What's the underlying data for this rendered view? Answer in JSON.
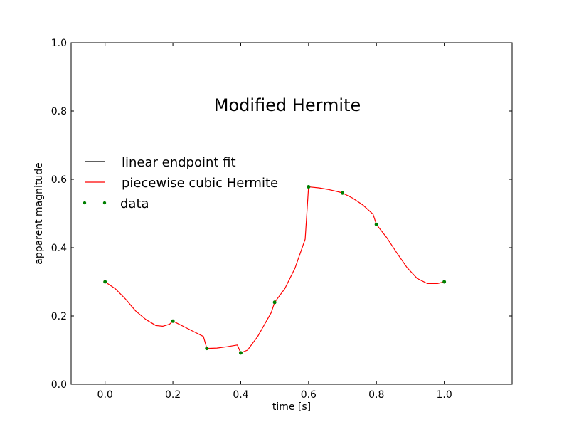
{
  "chart_data": {
    "type": "line",
    "title": "Modified Hermite",
    "xlabel": "time [s]",
    "ylabel": "apparent magnitude",
    "xlim": [
      -0.1,
      1.2
    ],
    "ylim": [
      0.0,
      1.0
    ],
    "xticks": [
      "0.0",
      "0.2",
      "0.4",
      "0.6",
      "0.8",
      "1.0"
    ],
    "xtick_values": [
      0.0,
      0.2,
      0.4,
      0.6,
      0.8,
      1.0
    ],
    "yticks": [
      "0.0",
      "0.2",
      "0.4",
      "0.6",
      "0.8",
      "1.0"
    ],
    "ytick_values": [
      0.0,
      0.2,
      0.4,
      0.6,
      0.8,
      1.0
    ],
    "grid": false,
    "legend": {
      "placement": "left",
      "entries": [
        {
          "label": "linear endpoint fit",
          "style": "line",
          "color": "#000000"
        },
        {
          "label": "piecewise cubic Hermite",
          "style": "line",
          "color": "#ff0000"
        },
        {
          "label": "data",
          "style": "dots",
          "color": "#007f00"
        }
      ]
    },
    "series": [
      {
        "name": "piecewise cubic Hermite",
        "color": "#ff0000",
        "x": [
          0.0,
          0.03,
          0.06,
          0.09,
          0.12,
          0.15,
          0.17,
          0.19,
          0.2,
          0.23,
          0.26,
          0.29,
          0.3,
          0.33,
          0.36,
          0.39,
          0.4,
          0.42,
          0.45,
          0.49,
          0.5,
          0.53,
          0.56,
          0.59,
          0.6,
          0.63,
          0.66,
          0.69,
          0.7,
          0.73,
          0.76,
          0.79,
          0.8,
          0.83,
          0.86,
          0.89,
          0.92,
          0.95,
          0.98,
          1.0
        ],
        "y": [
          0.3,
          0.28,
          0.25,
          0.215,
          0.19,
          0.172,
          0.17,
          0.176,
          0.185,
          0.17,
          0.155,
          0.14,
          0.105,
          0.106,
          0.11,
          0.115,
          0.092,
          0.1,
          0.14,
          0.21,
          0.24,
          0.28,
          0.34,
          0.425,
          0.578,
          0.575,
          0.57,
          0.563,
          0.56,
          0.545,
          0.525,
          0.498,
          0.468,
          0.43,
          0.385,
          0.342,
          0.31,
          0.295,
          0.295,
          0.3
        ]
      },
      {
        "name": "data",
        "color": "#007f00",
        "x": [
          0.0,
          0.2,
          0.3,
          0.4,
          0.5,
          0.6,
          0.7,
          0.8,
          1.0
        ],
        "y": [
          0.3,
          0.185,
          0.105,
          0.092,
          0.24,
          0.578,
          0.56,
          0.468,
          0.3
        ]
      }
    ]
  }
}
